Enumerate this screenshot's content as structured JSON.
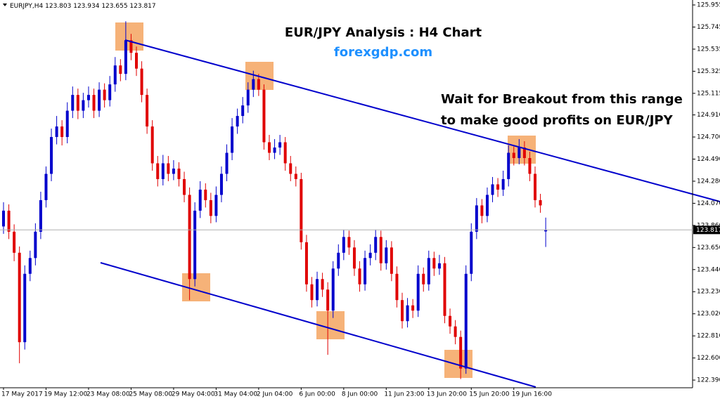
{
  "chart_data": {
    "type": "candlestick",
    "symbol": "EURJPY,H4",
    "title": "EUR/JPY Analysis : H4 Chart",
    "subtitle": "forexgdp.com",
    "annotation": [
      "Wait for Breakout from this range",
      "to make good profits on EUR/JPY"
    ],
    "up_color": "#0000cc",
    "down_color": "#e00000",
    "categories": [
      "17 May 2017",
      null,
      null,
      null,
      null,
      null,
      null,
      null,
      "19 May 12:00",
      null,
      null,
      null,
      null,
      null,
      null,
      null,
      "23 May 08:00",
      null,
      null,
      null,
      null,
      null,
      null,
      null,
      "25 May 08:00",
      null,
      null,
      null,
      null,
      null,
      null,
      null,
      "29 May 04:00",
      null,
      null,
      null,
      null,
      null,
      null,
      null,
      "31 May 04:00",
      null,
      null,
      null,
      null,
      null,
      null,
      null,
      "2 Jun 04:00",
      null,
      null,
      null,
      null,
      null,
      null,
      null,
      "6 Jun 00:00",
      null,
      null,
      null,
      null,
      null,
      null,
      null,
      "8 Jun 00:00",
      null,
      null,
      null,
      null,
      null,
      null,
      null,
      "11 Jun 23:00",
      null,
      null,
      null,
      null,
      null,
      null,
      null,
      "13 Jun 20:00",
      null,
      null,
      null,
      null,
      null,
      null,
      null,
      "15 Jun 20:00",
      null,
      null,
      null,
      null,
      null,
      null,
      null,
      "19 Jun 16:00",
      null,
      null,
      null,
      null,
      null,
      null
    ],
    "open": [
      123.85,
      124.0,
      123.8,
      123.6,
      122.75,
      123.4,
      123.55,
      123.8,
      124.1,
      124.35,
      124.7,
      124.8,
      124.7,
      124.95,
      125.1,
      124.95,
      125.05,
      125.1,
      124.95,
      125.15,
      125.05,
      125.2,
      125.38,
      125.3,
      125.62,
      125.5,
      125.35,
      125.1,
      124.8,
      124.45,
      124.3,
      124.45,
      124.35,
      124.4,
      124.3,
      124.15,
      123.35,
      124.0,
      124.2,
      124.1,
      123.95,
      124.15,
      124.35,
      124.55,
      124.8,
      124.9,
      125.0,
      125.15,
      125.25,
      125.15,
      124.65,
      124.55,
      124.6,
      124.65,
      124.45,
      124.35,
      124.3,
      123.7,
      123.3,
      123.15,
      123.35,
      123.25,
      123.05,
      123.45,
      123.6,
      123.75,
      123.65,
      123.45,
      123.3,
      123.55,
      123.6,
      123.75,
      123.5,
      123.65,
      123.4,
      123.15,
      122.95,
      123.1,
      123.05,
      123.4,
      123.3,
      123.55,
      123.45,
      123.5,
      123.0,
      122.9,
      122.8,
      122.5,
      123.4,
      123.8,
      124.05,
      123.95,
      124.15,
      124.25,
      124.2,
      124.3,
      124.55,
      124.5,
      124.6,
      124.5,
      124.35,
      124.1,
      123.803
    ],
    "high": [
      124.08,
      124.06,
      123.87,
      123.66,
      123.48,
      123.62,
      123.88,
      124.18,
      124.42,
      124.78,
      124.9,
      124.86,
      125.03,
      125.18,
      125.16,
      125.12,
      125.18,
      125.16,
      125.22,
      125.21,
      125.28,
      125.46,
      125.44,
      125.8,
      125.68,
      125.56,
      125.42,
      125.16,
      124.86,
      124.52,
      124.53,
      124.52,
      124.48,
      124.46,
      124.37,
      124.22,
      124.08,
      124.28,
      124.26,
      124.17,
      124.23,
      124.42,
      124.63,
      124.88,
      124.97,
      125.08,
      125.22,
      125.33,
      125.3,
      125.2,
      124.72,
      124.68,
      124.72,
      124.7,
      124.52,
      124.42,
      124.36,
      123.77,
      123.37,
      123.42,
      123.41,
      123.32,
      123.52,
      123.68,
      123.82,
      123.81,
      123.72,
      123.52,
      123.62,
      123.68,
      123.82,
      123.81,
      123.72,
      123.71,
      123.47,
      123.22,
      123.17,
      123.16,
      123.48,
      123.46,
      123.62,
      123.61,
      123.58,
      123.56,
      123.07,
      122.96,
      122.86,
      123.48,
      123.88,
      124.12,
      124.11,
      124.22,
      124.32,
      124.31,
      124.38,
      124.62,
      124.61,
      124.68,
      124.66,
      124.56,
      124.42,
      124.16,
      123.934
    ],
    "low": [
      123.78,
      123.73,
      123.52,
      122.55,
      122.68,
      123.33,
      123.48,
      123.73,
      124.03,
      124.28,
      124.63,
      124.62,
      124.64,
      124.88,
      124.87,
      124.88,
      124.98,
      124.88,
      124.89,
      124.98,
      124.99,
      125.13,
      125.23,
      125.24,
      125.43,
      125.28,
      125.03,
      124.73,
      124.38,
      124.23,
      124.24,
      124.28,
      124.29,
      124.23,
      124.08,
      123.15,
      123.28,
      123.93,
      124.03,
      123.88,
      123.89,
      124.08,
      124.28,
      124.48,
      124.73,
      124.83,
      124.93,
      125.08,
      125.09,
      124.58,
      124.48,
      124.49,
      124.53,
      124.38,
      124.28,
      124.23,
      123.63,
      123.23,
      123.08,
      123.09,
      123.18,
      122.63,
      122.98,
      123.38,
      123.53,
      123.58,
      123.38,
      123.23,
      123.24,
      123.48,
      123.53,
      123.43,
      123.44,
      123.33,
      123.08,
      122.88,
      122.89,
      122.98,
      122.99,
      123.23,
      123.24,
      123.38,
      123.39,
      122.93,
      122.83,
      122.73,
      122.4,
      122.45,
      123.33,
      123.73,
      123.88,
      123.89,
      124.08,
      124.13,
      124.14,
      124.23,
      124.43,
      124.44,
      124.43,
      124.28,
      124.03,
      123.98,
      123.655
    ],
    "close": [
      124.0,
      123.8,
      123.6,
      122.75,
      123.4,
      123.55,
      123.8,
      124.1,
      124.35,
      124.7,
      124.8,
      124.7,
      124.95,
      125.1,
      124.95,
      125.05,
      125.1,
      124.95,
      125.15,
      125.05,
      125.2,
      125.38,
      125.3,
      125.62,
      125.5,
      125.35,
      125.1,
      124.8,
      124.45,
      124.3,
      124.45,
      124.35,
      124.4,
      124.3,
      124.15,
      123.35,
      124.0,
      124.2,
      124.1,
      123.95,
      124.15,
      124.35,
      124.55,
      124.8,
      124.9,
      125.0,
      125.15,
      125.25,
      125.15,
      124.65,
      124.55,
      124.6,
      124.65,
      124.45,
      124.35,
      124.3,
      123.7,
      123.3,
      123.15,
      123.35,
      123.25,
      123.05,
      123.45,
      123.6,
      123.75,
      123.65,
      123.45,
      123.3,
      123.55,
      123.6,
      123.75,
      123.5,
      123.65,
      123.4,
      123.15,
      122.95,
      123.1,
      123.05,
      123.4,
      123.3,
      123.55,
      123.45,
      123.5,
      123.0,
      122.9,
      122.8,
      122.5,
      123.4,
      123.8,
      124.05,
      123.95,
      124.15,
      124.25,
      124.2,
      124.3,
      124.55,
      124.5,
      124.6,
      124.5,
      124.35,
      124.1,
      124.05,
      123.817
    ],
    "ylim": [
      122.317,
      126.002
    ],
    "yticks": [
      125.955,
      125.745,
      125.535,
      125.325,
      125.115,
      {
        "value": 124.91,
        "label": "124.910"
      },
      {
        "value": 124.7,
        "label": "124.700"
      },
      {
        "value": 124.49,
        "label": "124.490"
      },
      {
        "value": 124.28,
        "label": "124.280"
      },
      {
        "value": 124.07,
        "label": "124.070"
      },
      {
        "value": 123.86,
        "label": "123.860"
      },
      {
        "value": 123.65,
        "label": "123.650"
      },
      {
        "value": 123.44,
        "label": "123.440"
      },
      {
        "value": 123.23,
        "label": "123.230"
      },
      {
        "value": 123.02,
        "label": "123.020"
      },
      {
        "value": 122.81,
        "label": "122.810"
      },
      {
        "value": 122.6,
        "label": "122.600"
      },
      {
        "value": 122.39,
        "label": "122.390"
      }
    ],
    "grid": false
  }
}
